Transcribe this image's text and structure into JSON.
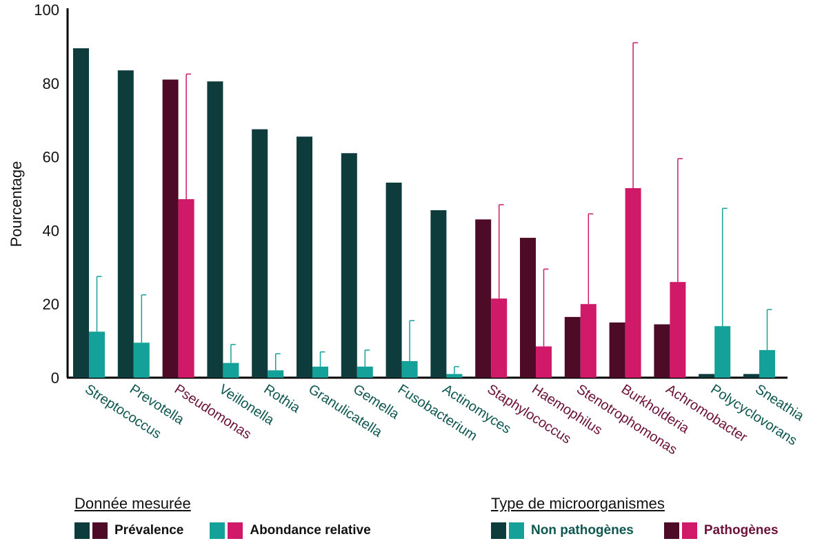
{
  "chart_data": {
    "type": "bar",
    "ylabel": "Pourcentage",
    "xlabel": "",
    "ylim": [
      0,
      100
    ],
    "yticks": [
      0,
      20,
      40,
      60,
      80,
      100
    ],
    "categories": [
      "Streptococcus",
      "Prevotella",
      "Pseudomonas",
      "Veillonella",
      "Rothia",
      "Granulicatella",
      "Gemella",
      "Fusobacterium",
      "Actinomyces",
      "Staphylococcus",
      "Haemophilus",
      "Stenotrophomonas",
      "Burkholderia",
      "Achromobacter",
      "Polycyclovorans",
      "Sneathia"
    ],
    "category_type": [
      "non_pathogen",
      "non_pathogen",
      "pathogen",
      "non_pathogen",
      "non_pathogen",
      "non_pathogen",
      "non_pathogen",
      "non_pathogen",
      "non_pathogen",
      "pathogen",
      "pathogen",
      "pathogen",
      "pathogen",
      "pathogen",
      "non_pathogen",
      "non_pathogen"
    ],
    "series": [
      {
        "name": "Prévalence",
        "values": [
          89.5,
          83.5,
          81,
          80.5,
          67.5,
          65.5,
          61,
          53,
          45.5,
          43,
          38,
          16.5,
          15,
          14.5,
          1,
          1
        ]
      },
      {
        "name": "Abondance relative",
        "values": [
          12.5,
          9.5,
          48.5,
          4,
          2,
          3,
          3,
          4.5,
          1,
          21.5,
          8.5,
          20,
          51.5,
          26,
          14,
          7.5
        ],
        "error_upper": [
          27.5,
          22.5,
          82.5,
          9,
          6.5,
          7,
          7.5,
          15.5,
          3,
          47,
          29.5,
          44.5,
          91,
          59.5,
          46,
          18.5
        ]
      }
    ],
    "colors": {
      "prevalence_non_pathogen": "#0e3b3b",
      "prevalence_pathogen": "#4e0b28",
      "abundance_non_pathogen": "#14a199",
      "abundance_pathogen": "#d01a69",
      "label_non_pathogen": "#0e5650",
      "label_pathogen": "#6b1138"
    }
  },
  "legend": {
    "measure_title": "Donnée mesurée",
    "prevalence_label": "Prévalence",
    "abundance_label": "Abondance relative",
    "type_title": "Type de microorganismes",
    "non_pathogen_label": "Non pathogènes",
    "pathogen_label": "Pathogènes"
  }
}
